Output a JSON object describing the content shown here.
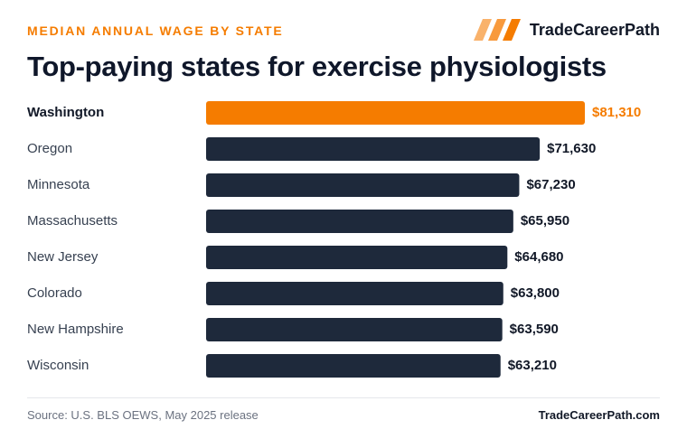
{
  "header": {
    "kicker": "MEDIAN ANNUAL WAGE BY STATE",
    "brand": "TradeCareerPath",
    "title": "Top-paying states for exercise physiologists"
  },
  "footer": {
    "source": "Source: U.S. BLS OEWS, May 2025 release",
    "brand": "TradeCareerPath.com"
  },
  "colors": {
    "accent": "#f57c00",
    "bar": "#1e293b",
    "logo_light": "#f9b26b",
    "logo_mid": "#f89a3d",
    "logo_dark": "#f57c00"
  },
  "icons": {
    "brand_logo": "three-slanted-bars-logo"
  },
  "chart_data": {
    "type": "bar",
    "orientation": "horizontal",
    "highlight_index": 0,
    "categories": [
      "Washington",
      "Oregon",
      "Minnesota",
      "Massachusetts",
      "New Jersey",
      "Colorado",
      "New Hampshire",
      "Wisconsin"
    ],
    "values": [
      81310,
      71630,
      67230,
      65950,
      64680,
      63800,
      63590,
      63210
    ],
    "value_labels": [
      "$81,310",
      "$71,630",
      "$67,230",
      "$65,950",
      "$64,680",
      "$63,800",
      "$63,590",
      "$63,210"
    ],
    "xlim": [
      0,
      81310
    ],
    "grid": false,
    "legend": "none"
  }
}
